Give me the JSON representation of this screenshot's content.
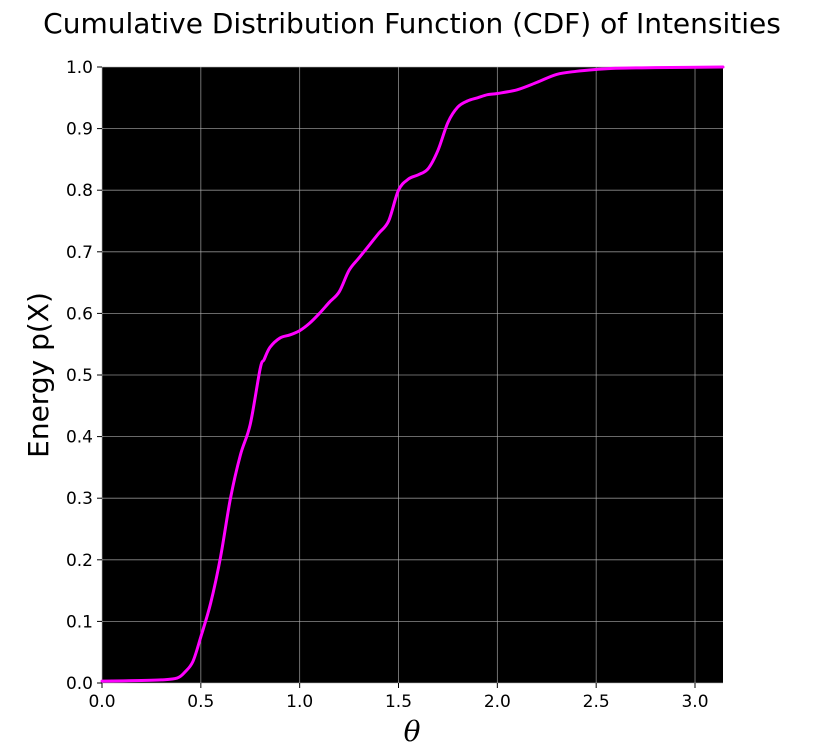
{
  "chart_data": {
    "type": "line",
    "title": "Cumulative Distribution Function (CDF) of Intensities",
    "xlabel": "θ",
    "ylabel": "Energy p(X)",
    "xlim": [
      0,
      3.1416
    ],
    "ylim": [
      0,
      1.0
    ],
    "grid": true,
    "background": "#000000",
    "x_ticks": [
      "0.0",
      "0.5",
      "1.0",
      "1.5",
      "2.0",
      "2.5",
      "3.0"
    ],
    "y_ticks": [
      "0.0",
      "0.1",
      "0.2",
      "0.3",
      "0.4",
      "0.5",
      "0.6",
      "0.7",
      "0.8",
      "0.9",
      "1.0"
    ],
    "series": [
      {
        "color": "#ff00ff",
        "x": [
          0.0,
          0.2,
          0.3,
          0.38,
          0.42,
          0.46,
          0.5,
          0.55,
          0.6,
          0.65,
          0.7,
          0.75,
          0.8,
          0.82,
          0.85,
          0.9,
          0.95,
          1.0,
          1.05,
          1.1,
          1.15,
          1.2,
          1.25,
          1.3,
          1.35,
          1.4,
          1.45,
          1.5,
          1.55,
          1.6,
          1.65,
          1.7,
          1.75,
          1.8,
          1.85,
          1.9,
          1.95,
          2.0,
          2.1,
          2.2,
          2.3,
          2.4,
          2.5,
          2.6,
          2.8,
          3.1416
        ],
        "y": [
          0.003,
          0.004,
          0.005,
          0.008,
          0.018,
          0.035,
          0.075,
          0.13,
          0.205,
          0.3,
          0.37,
          0.42,
          0.51,
          0.525,
          0.545,
          0.56,
          0.565,
          0.572,
          0.584,
          0.6,
          0.618,
          0.635,
          0.67,
          0.69,
          0.71,
          0.73,
          0.75,
          0.8,
          0.818,
          0.825,
          0.835,
          0.865,
          0.91,
          0.935,
          0.945,
          0.95,
          0.955,
          0.957,
          0.963,
          0.975,
          0.988,
          0.993,
          0.996,
          0.998,
          0.999,
          1.0
        ]
      }
    ]
  }
}
